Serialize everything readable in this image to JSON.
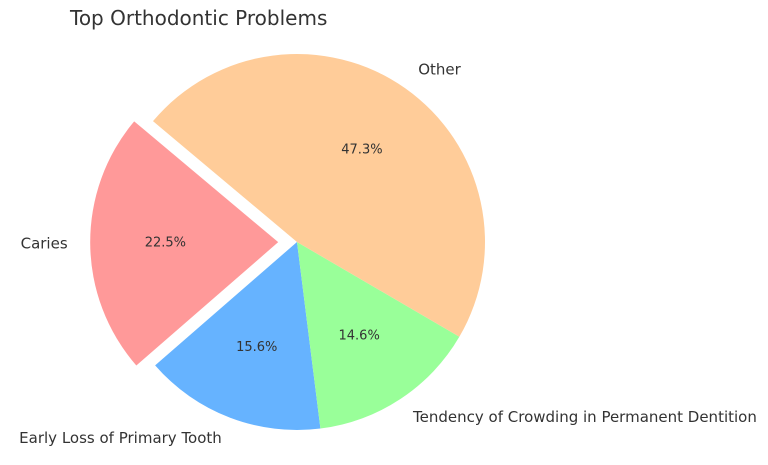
{
  "chart_data": {
    "type": "pie",
    "title": "Top Orthodontic Problems",
    "slices": [
      {
        "label": "Caries",
        "value": 22.5,
        "pct_label": "22.5%",
        "color": "#ff9999",
        "exploded": true
      },
      {
        "label": "Early Loss of Primary Tooth",
        "value": 15.6,
        "pct_label": "15.6%",
        "color": "#66b3ff",
        "exploded": false
      },
      {
        "label": "Tendency of Crowding in Permanent Dentition",
        "value": 14.6,
        "pct_label": "14.6%",
        "color": "#99ff99",
        "exploded": false
      },
      {
        "label": "Other",
        "value": 47.3,
        "pct_label": "47.3%",
        "color": "#ffcc99",
        "exploded": false
      }
    ],
    "start_angle_deg": 140,
    "direction": "counterclockwise",
    "legend": "none"
  }
}
